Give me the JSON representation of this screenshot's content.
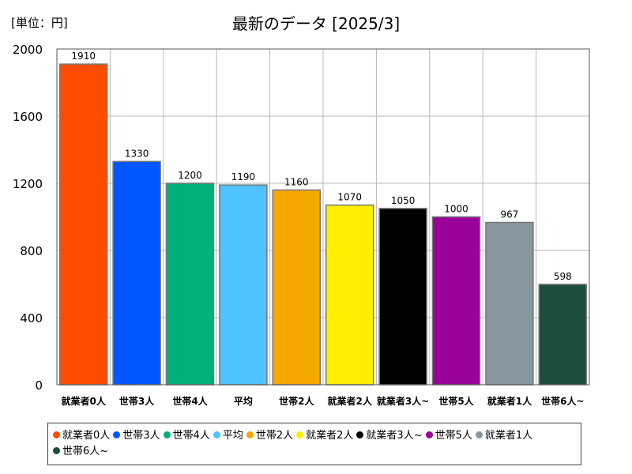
{
  "unit_label": "[単位：円]",
  "chart_data": {
    "type": "bar",
    "title": "最新のデータ [2025/3]",
    "categories": [
      "就業者0人",
      "世帯3人",
      "世帯4人",
      "平均",
      "世帯2人",
      "就業者2人",
      "就業者3人~",
      "世帯5人",
      "就業者1人",
      "世帯6人~"
    ],
    "values": [
      1910,
      1330,
      1200,
      1190,
      1160,
      1070,
      1050,
      1000,
      967,
      598
    ],
    "colors": [
      "#ff4d00",
      "#0057ff",
      "#00b07a",
      "#4fc3ff",
      "#f5a800",
      "#ffee00",
      "#000000",
      "#990099",
      "#8896a0",
      "#1d4d3d"
    ],
    "ylim": [
      0,
      2000
    ],
    "yticks": [
      0,
      400,
      800,
      1200,
      1600,
      2000
    ],
    "grid": true,
    "legend": {
      "placement": "bottom",
      "entries": [
        "就業者0人",
        "世帯3人",
        "世帯4人",
        "平均",
        "世帯2人",
        "就業者2人",
        "就業者3人~",
        "世帯5人",
        "就業者1人",
        "世帯6人~"
      ]
    }
  }
}
